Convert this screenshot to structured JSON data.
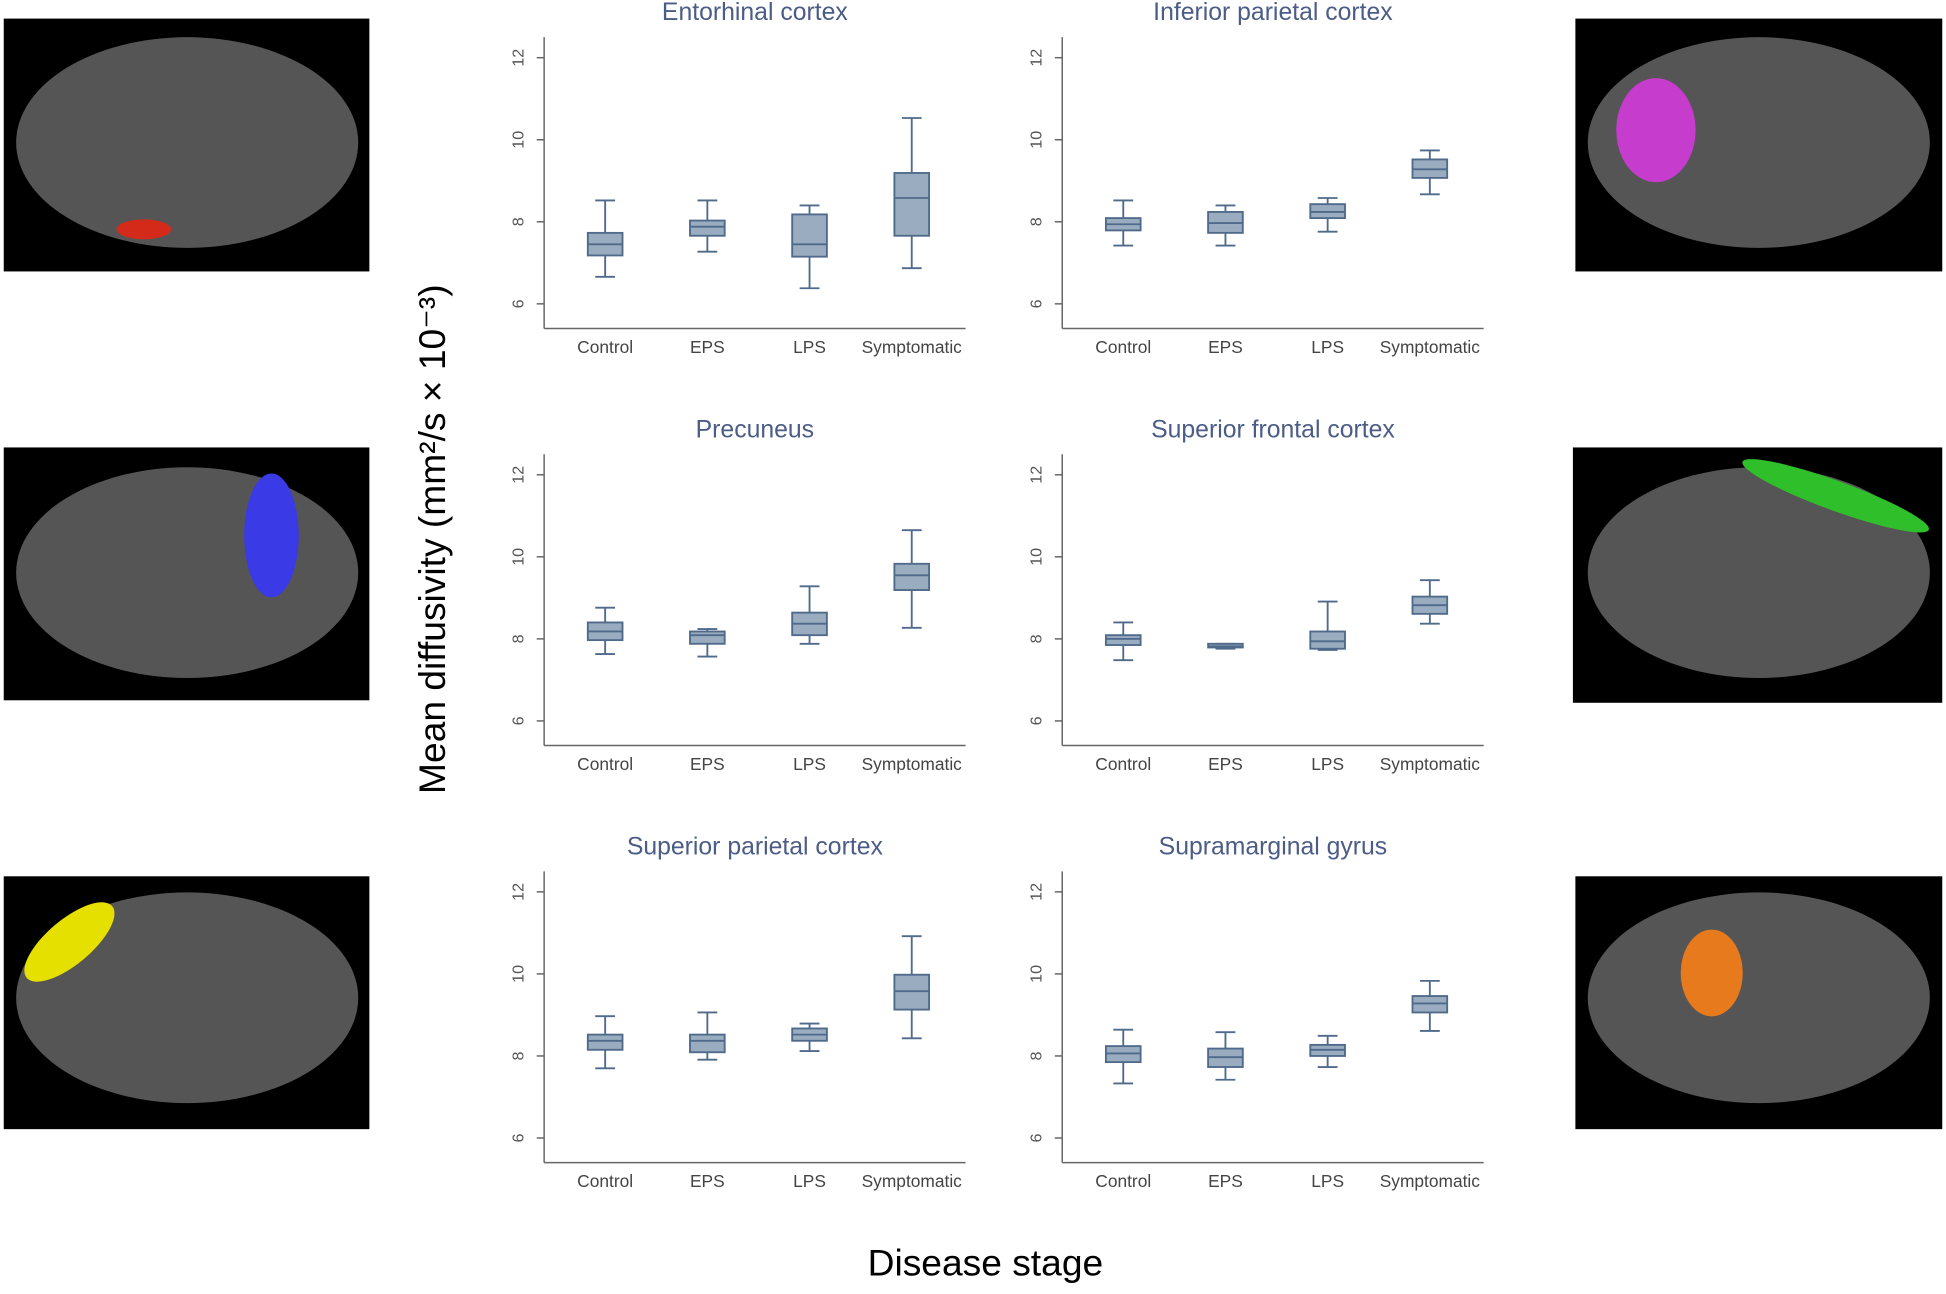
{
  "y_label": "Mean diffusivity (mm²/s × 10⁻³)",
  "x_label": "Disease stage",
  "chart_data": [
    {
      "type": "box",
      "title": "Entorhinal cortex",
      "categories": [
        "Control",
        "EPS",
        "LPS",
        "Symptomatic"
      ],
      "min": [
        6.66,
        7.27,
        6.38,
        6.87
      ],
      "q1": [
        7.18,
        7.66,
        7.15,
        7.66
      ],
      "median": [
        7.45,
        7.88,
        7.45,
        8.58
      ],
      "q3": [
        7.73,
        8.03,
        8.18,
        9.19
      ],
      "max": [
        8.52,
        8.52,
        8.4,
        10.53
      ],
      "ylim": [
        5.4,
        12.5
      ],
      "yticks": [
        6,
        8,
        10,
        12
      ],
      "color": "#9aacc0"
    },
    {
      "type": "box",
      "title": "Inferior parietal cortex",
      "categories": [
        "Control",
        "EPS",
        "LPS",
        "Symptomatic"
      ],
      "min": [
        7.42,
        7.42,
        7.76,
        8.67
      ],
      "q1": [
        7.79,
        7.73,
        8.09,
        9.07
      ],
      "median": [
        7.94,
        7.97,
        8.24,
        9.28
      ],
      "q3": [
        8.09,
        8.24,
        8.43,
        9.52
      ],
      "max": [
        8.52,
        8.4,
        8.58,
        9.74
      ],
      "ylim": [
        5.4,
        12.5
      ],
      "yticks": [
        6,
        8,
        10,
        12
      ],
      "color": "#9aacc0"
    },
    {
      "type": "box",
      "title": "Precuneus",
      "categories": [
        "Control",
        "EPS",
        "LPS",
        "Symptomatic"
      ],
      "min": [
        7.63,
        7.57,
        7.88,
        8.27
      ],
      "q1": [
        7.97,
        7.88,
        8.09,
        9.19
      ],
      "median": [
        8.18,
        8.09,
        8.37,
        9.55
      ],
      "q3": [
        8.4,
        8.18,
        8.64,
        9.83
      ],
      "max": [
        8.76,
        8.24,
        9.28,
        10.65
      ],
      "ylim": [
        5.4,
        12.5
      ],
      "yticks": [
        6,
        8,
        10,
        12
      ],
      "color": "#9aacc0"
    },
    {
      "type": "box",
      "title": "Superior frontal cortex",
      "categories": [
        "Control",
        "EPS",
        "LPS",
        "Symptomatic"
      ],
      "min": [
        7.48,
        7.76,
        7.73,
        8.37
      ],
      "q1": [
        7.85,
        7.79,
        7.76,
        8.61
      ],
      "median": [
        8.0,
        7.82,
        7.94,
        8.82
      ],
      "q3": [
        8.09,
        7.88,
        8.18,
        9.03
      ],
      "max": [
        8.4,
        7.88,
        8.91,
        9.43
      ],
      "ylim": [
        5.4,
        12.5
      ],
      "yticks": [
        6,
        8,
        10,
        12
      ],
      "color": "#9aacc0"
    },
    {
      "type": "box",
      "title": "Superior parietal cortex",
      "categories": [
        "Control",
        "EPS",
        "LPS",
        "Symptomatic"
      ],
      "min": [
        7.7,
        7.91,
        8.12,
        8.43
      ],
      "q1": [
        8.15,
        8.09,
        8.37,
        9.13
      ],
      "median": [
        8.37,
        8.37,
        8.52,
        9.58
      ],
      "q3": [
        8.52,
        8.52,
        8.67,
        9.98
      ],
      "max": [
        8.97,
        9.06,
        8.79,
        10.92
      ],
      "ylim": [
        5.4,
        12.5
      ],
      "yticks": [
        6,
        8,
        10,
        12
      ],
      "color": "#9aacc0"
    },
    {
      "type": "box",
      "title": "Supramarginal gyrus",
      "categories": [
        "Control",
        "EPS",
        "LPS",
        "Symptomatic"
      ],
      "min": [
        7.33,
        7.42,
        7.73,
        8.61
      ],
      "q1": [
        7.85,
        7.73,
        8.0,
        9.06
      ],
      "median": [
        8.06,
        7.97,
        8.15,
        9.28
      ],
      "q3": [
        8.24,
        8.18,
        8.27,
        9.46
      ],
      "max": [
        8.64,
        8.58,
        8.49,
        9.83
      ],
      "ylim": [
        5.4,
        12.5
      ],
      "yticks": [
        6,
        8,
        10,
        12
      ],
      "color": "#9aacc0"
    }
  ]
}
